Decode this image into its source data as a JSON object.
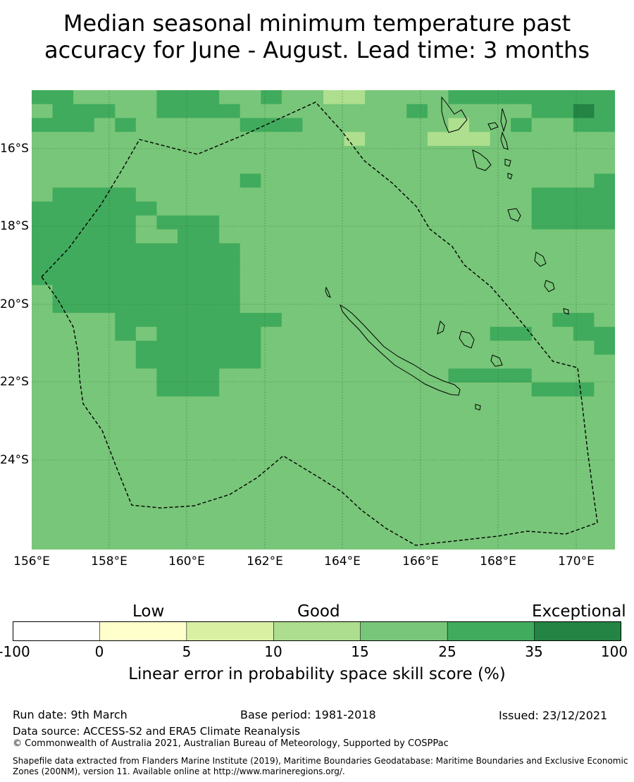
{
  "title_line1": "Median seasonal minimum temperature past",
  "title_line2": "accuracy for June - August. Lead time: 3 months",
  "map": {
    "lon_labels": [
      "156°E",
      "158°E",
      "160°E",
      "162°E",
      "164°E",
      "166°E",
      "168°E",
      "170°E"
    ],
    "lat_labels": [
      "16°S",
      "18°S",
      "20°S",
      "22°S",
      "24°S"
    ],
    "region": "New Caledonia EEZ",
    "grid": [
      "HHGGGGHHHGGHGGBBGGGGHHHHHHHH",
      "GHHHGGHHHHGGGGGGGGHGGGGGHHIH",
      "HHHGHGGGGGHHHGGGGGGGBGGHGGHH",
      "GGGGGGGGGGGGGGGBGGGBBBGGGGGG",
      "GGGGGGGGGGGGGGGGGGGGGGGGGGGG",
      "GGGGGGGGGGGGGGGGGGGGGGGGGGGG",
      "GGGGGGGGGGHGGGGGGGGGGGGGGGGH",
      "GHHHHGGGGGGGGGGGGGGGGGGGHHHH",
      "HHHHHHGGGGGGGGGGGGGGGGGGHHHH",
      "HHHHHGHHHGGGGGGGGGGGGGGGHHHH",
      "HHHHHGGHHGGGGGGGGGGGGGGGGGGG",
      "HHHHHHHHHHGGGGGGGGGGGGGGGGGG",
      "HHHHHHHHHHGGGGGGGGGGGGGGGGGG",
      "HHHHHHHHHHGGGGGGGGGGGGGGGGGG",
      "GHHHHHHHHHGGGGGGGGGGGGGGGGGG",
      "GHHHHHHHHHGGGGGGGGGGGGGGGGGG",
      "GGGGHHHHHHHHGGGGGGGGGGGGGHHG",
      "GGGGHGHHHHHGGGGGGGGGGGHHGGHH",
      "GGGGGHHHHHHGGGGGGGGGGGGGGGGH",
      "GGGGGHHHHHHGGGGGGGGGGGGGGGGG",
      "GGGGGGHHHGGGGGGGGGGGHHHHGGGG",
      "GGGGGGHHHGGGGGGGGGGGGGGGHHHG",
      "GGGGGGGGGGGGGGGGGGGGGGGGGGGG",
      "GGGGGGGGGGGGGGGGGGGGGGGGGGGG",
      "GGGGGGGGGGGGGGGGGGGGGGGGGGGG",
      "GGGGGGGGGGGGGGGGGGGGGGGGGGGG",
      "GGGGGGGGGGGGGGGGGGGGGGGGGGGG",
      "GGGGGGGGGGGGGGGGGGGGGGGGGGGG",
      "GGGGGGGGGGGGGGGGGGGGGGGGGGGG",
      "GGGGGGGGGGGGGGGGGGGGGGGGGGGG",
      "GGGGGGGGGGGGGGGGGGGGGGGGGGGG",
      "GGGGGGGGGGGGGGGGGGGGGGGGGGGG",
      "GGGGGGGGGGGGGGGGGGGGGGGGGGGG"
    ],
    "colors": {
      "B": "#addf8e",
      "G": "#78c679",
      "H": "#41ab5d",
      "I": "#238443"
    }
  },
  "colorbar": {
    "categories": [
      "Low",
      "Good",
      "Exceptional"
    ],
    "ticks": [
      "-100",
      "0",
      "5",
      "10",
      "15",
      "25",
      "35",
      "100"
    ],
    "colors": [
      "#ffffff",
      "#ffffcc",
      "#d9f0a3",
      "#addd8e",
      "#78c679",
      "#41ab5d",
      "#238443"
    ],
    "label": "Linear error in probability space skill score (%)"
  },
  "footer": {
    "run_date": "Run date: 9th March",
    "base_period": "Base period: 1981-2018",
    "issued": "Issued: 23/12/2021",
    "data_source": "Data source: ACCESS-S2 and ERA5 Climate Reanalysis",
    "copyright": "© Commonwealth of Australia 2021, Australian Bureau of Meteorology, Supported by COSPPac",
    "shapefile_line1": "Shapefile data extracted from Flanders Marine Institute (2019), Maritime Boundaries Geodatabase: Maritime Boundaries and Exclusive Economic",
    "shapefile_line2": "Zones (200NM), version 11. Available online at http://www.marineregions.org/."
  }
}
